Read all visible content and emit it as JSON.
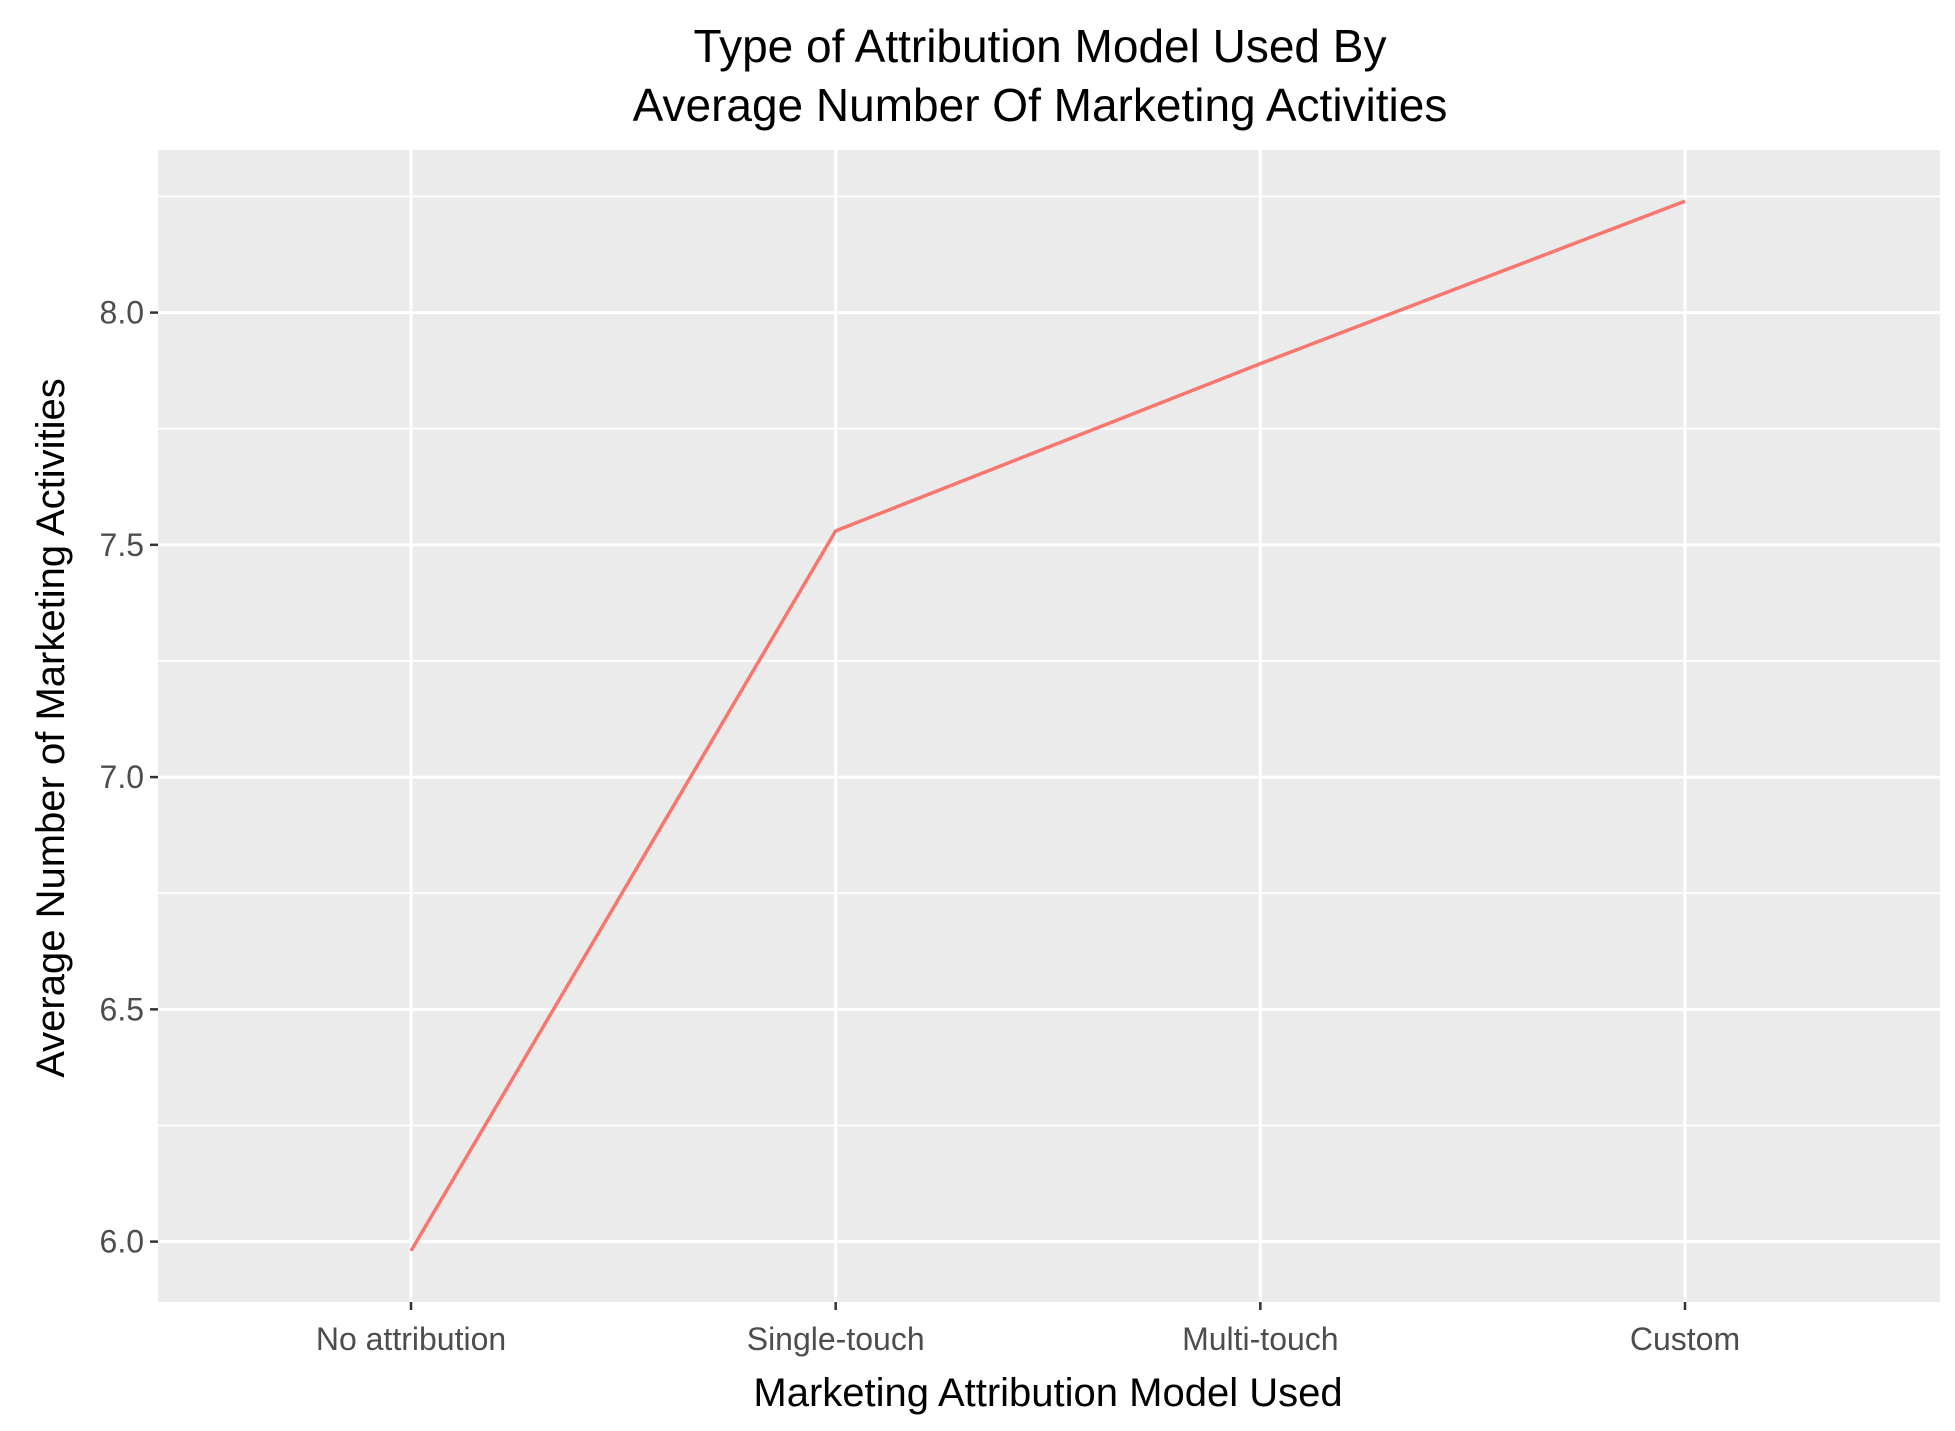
{
  "chart_data": {
    "type": "line",
    "title": "Type of Attribution Model Used By",
    "subtitle": "Average Number Of Marketing Activities",
    "xlabel": "Marketing Attribution Model Used",
    "ylabel": "Average Number of Marketing Activities",
    "categories": [
      "No attribution",
      "Single-touch",
      "Multi-touch",
      "Custom"
    ],
    "series": [
      {
        "values": [
          5.98,
          7.53,
          7.89,
          8.24
        ],
        "color": "#F8766D"
      }
    ],
    "ylim": [
      5.87,
      8.35
    ],
    "yticks": [
      6.0,
      6.5,
      7.0,
      7.5,
      8.0
    ],
    "ytick_labels": [
      "6.0",
      "6.5",
      "7.0",
      "7.5",
      "8.0"
    ],
    "grid": true,
    "legend": "none",
    "colors": {
      "panel_background": "#EBEBEB",
      "grid": "#FFFFFF",
      "line": "#F8766D",
      "tick_text": "#4D4D4D",
      "title_text": "#000000"
    }
  }
}
